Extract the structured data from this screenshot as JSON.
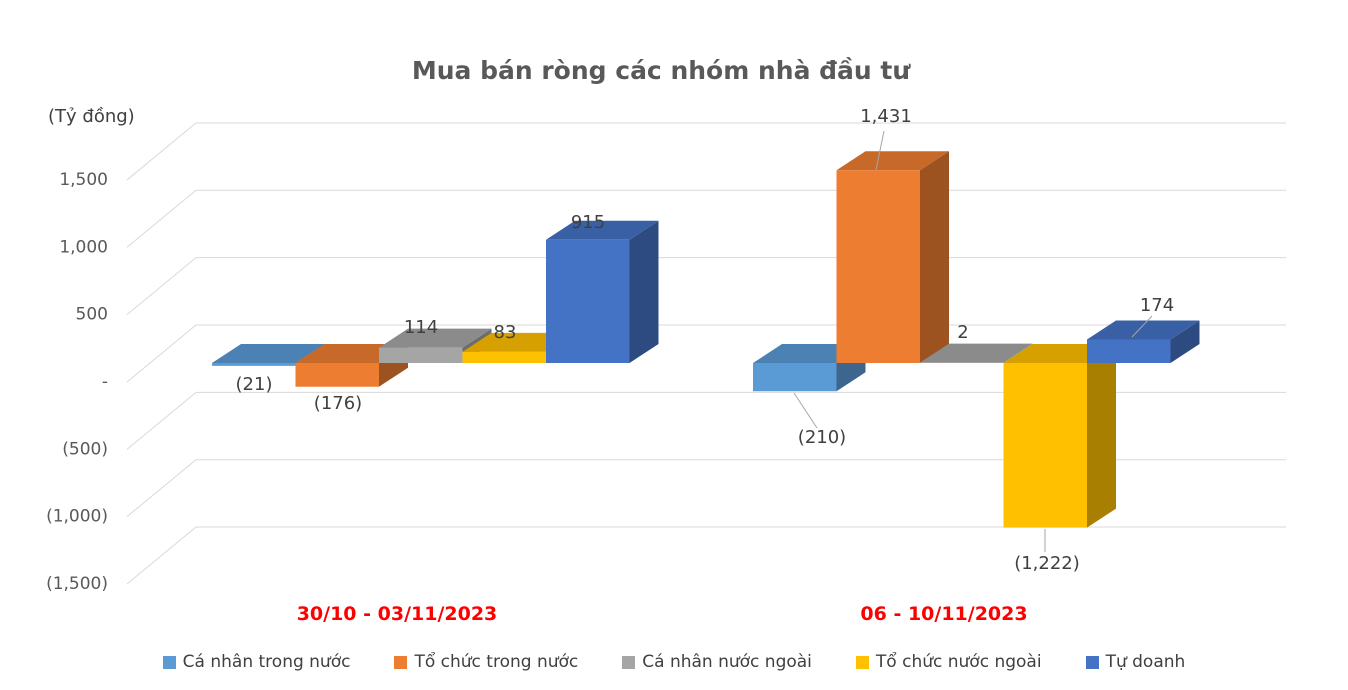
{
  "chart_data": {
    "type": "bar",
    "variant": "3d-clustered-column",
    "title": "Mua bán ròng các nhóm nhà đầu tư",
    "unit_label": "(Tỷ đồng)",
    "ylim": [
      -1500,
      1500
    ],
    "grid": true,
    "legend_position": "bottom",
    "y_ticks": [
      {
        "value": 1500,
        "label": "1,500"
      },
      {
        "value": 1000,
        "label": "1,000"
      },
      {
        "value": 500,
        "label": "500"
      },
      {
        "value": 0,
        "label": "-"
      },
      {
        "value": -500,
        "label": "(500)"
      },
      {
        "value": -1000,
        "label": "(1,000)"
      },
      {
        "value": -1500,
        "label": "(1,500)"
      }
    ],
    "categories": [
      "30/10 - 03/11/2023",
      "06 - 10/11/2023"
    ],
    "series": [
      {
        "name": "Cá nhân trong nước",
        "color": "#5B9BD5",
        "values": [
          -21,
          -210
        ],
        "data_labels": [
          "(21)",
          "(210)"
        ]
      },
      {
        "name": "Tổ chức trong nước",
        "color": "#ED7D31",
        "values": [
          -176,
          1431
        ],
        "data_labels": [
          "(176)",
          "1,431"
        ]
      },
      {
        "name": "Cá nhân nước ngoài",
        "color": "#A5A5A5",
        "values": [
          114,
          2
        ],
        "data_labels": [
          "114",
          "2"
        ]
      },
      {
        "name": "Tổ chức nước ngoài",
        "color": "#FFC000",
        "values": [
          83,
          -1222
        ],
        "data_labels": [
          "83",
          "(1,222)"
        ]
      },
      {
        "name": "Tự doanh",
        "color": "#4472C4",
        "values": [
          915,
          174
        ],
        "data_labels": [
          "915",
          "174"
        ]
      }
    ],
    "colors": {
      "grid": "#D9D9D9",
      "axis_text": "#595959",
      "data_label_text": "#404040",
      "title_text": "#595959",
      "category_label_text": "#FF0000",
      "leader_line": "#A6A6A6"
    }
  }
}
